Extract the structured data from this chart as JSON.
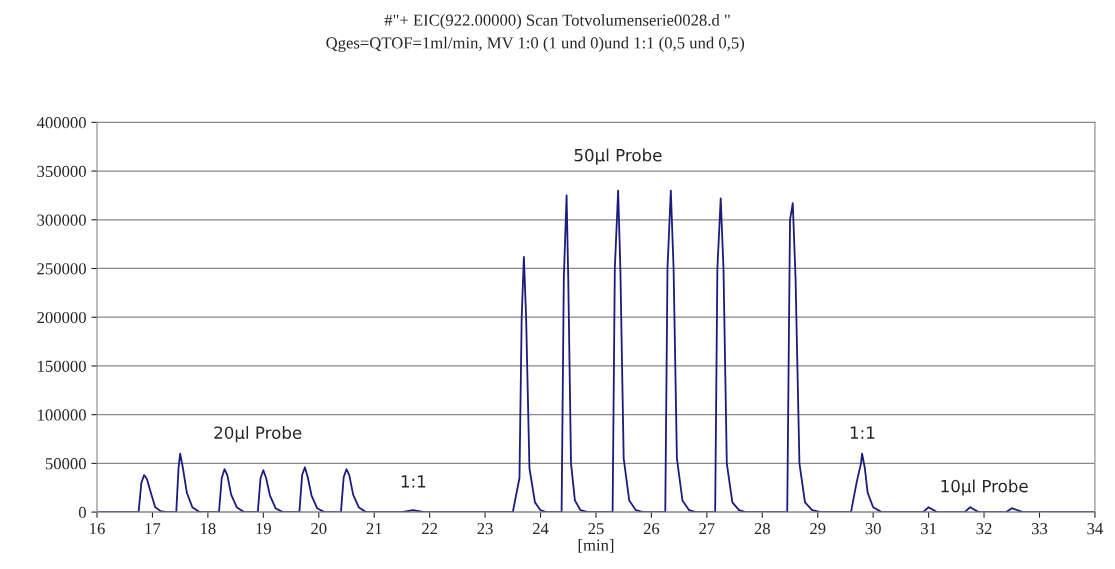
{
  "chart_data": {
    "type": "line",
    "title": "#\"+ EIC(922.00000) Scan Totvolumenserie0028.d \"",
    "subtitle": "Qges=QTOF=1ml/min, MV 1:0 (1 und 0)und 1:1 (0,5 und 0,5)",
    "xlabel": "[min]",
    "x": [
      16.0,
      16.5,
      16.75,
      16.8,
      16.85,
      16.9,
      16.97,
      17.05,
      17.15,
      17.25,
      17.43,
      17.47,
      17.5,
      17.55,
      17.62,
      17.72,
      17.85,
      18.2,
      18.25,
      18.3,
      18.35,
      18.42,
      18.52,
      18.65,
      18.9,
      18.95,
      19.0,
      19.05,
      19.12,
      19.22,
      19.35,
      19.65,
      19.7,
      19.75,
      19.8,
      19.87,
      19.97,
      20.1,
      20.4,
      20.45,
      20.5,
      20.55,
      20.62,
      20.72,
      20.85,
      21.5,
      21.7,
      21.9,
      23.5,
      23.62,
      23.66,
      23.7,
      23.74,
      23.8,
      23.9,
      24.0,
      24.1,
      24.38,
      24.42,
      24.47,
      24.5,
      24.55,
      24.62,
      24.72,
      24.85,
      25.3,
      25.34,
      25.4,
      25.44,
      25.5,
      25.6,
      25.72,
      25.85,
      26.25,
      26.29,
      26.35,
      26.4,
      26.46,
      26.56,
      26.68,
      26.8,
      27.15,
      27.19,
      27.25,
      27.3,
      27.36,
      27.46,
      27.58,
      27.7,
      28.45,
      28.5,
      28.55,
      28.6,
      28.67,
      28.77,
      28.9,
      29.05,
      29.6,
      29.7,
      29.78,
      29.8,
      29.85,
      29.9,
      30.0,
      30.15,
      30.9,
      31.0,
      31.15,
      31.65,
      31.75,
      31.9,
      32.4,
      32.5,
      32.7,
      34.0
    ],
    "series": [
      {
        "color": "#1c1c7c",
        "values": [
          0,
          0,
          0,
          30000,
          38000,
          34000,
          20000,
          5000,
          1000,
          0,
          0,
          45000,
          60000,
          45000,
          20000,
          5000,
          0,
          0,
          35000,
          44000,
          38000,
          18000,
          5000,
          0,
          0,
          35000,
          43000,
          35000,
          17000,
          4000,
          0,
          0,
          38000,
          46000,
          36000,
          17000,
          4000,
          0,
          0,
          36000,
          44000,
          38000,
          18000,
          5000,
          0,
          0,
          2000,
          0,
          0,
          35000,
          200000,
          262000,
          200000,
          45000,
          10000,
          2000,
          0,
          0,
          240000,
          325000,
          240000,
          50000,
          12000,
          2000,
          0,
          0,
          250000,
          330000,
          250000,
          55000,
          12000,
          2000,
          0,
          0,
          250000,
          330000,
          250000,
          55000,
          12000,
          2000,
          0,
          0,
          250000,
          322000,
          250000,
          50000,
          10000,
          2000,
          0,
          0,
          300000,
          317000,
          240000,
          50000,
          10000,
          2000,
          0,
          0,
          30000,
          50000,
          60000,
          45000,
          20000,
          5000,
          0,
          0,
          5000,
          0,
          0,
          5000,
          0,
          0,
          4000,
          0,
          0
        ]
      }
    ],
    "xlim": [
      16,
      34
    ],
    "xticks": [
      16,
      17,
      18,
      19,
      20,
      21,
      22,
      23,
      24,
      25,
      26,
      27,
      28,
      29,
      30,
      31,
      32,
      33,
      34
    ],
    "ylim": [
      0,
      400000
    ],
    "yticks": [
      0,
      50000,
      100000,
      150000,
      200000,
      250000,
      300000,
      350000,
      400000
    ],
    "grid": "y",
    "line_style": "solid",
    "marker": "none",
    "annotations": [
      "20µl Probe",
      "1:1",
      "50µl Probe",
      "1:1",
      "10µl Probe"
    ]
  }
}
